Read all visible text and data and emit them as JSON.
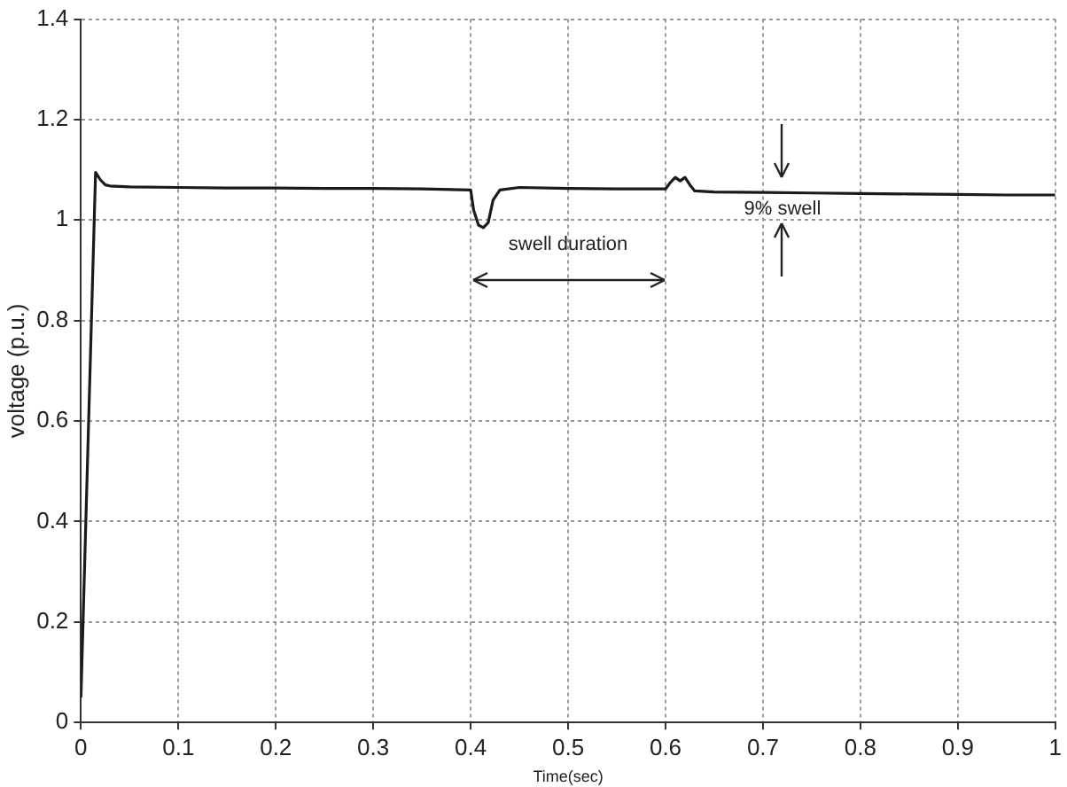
{
  "chart_data": {
    "type": "line",
    "xlabel": "Time(sec)",
    "ylabel": "voltage (p.u.)",
    "xlim": [
      0,
      1
    ],
    "xticks": [
      0,
      0.1,
      0.2,
      0.3,
      0.4,
      0.5,
      0.6,
      0.7,
      0.8,
      0.9,
      1
    ],
    "ylim": [
      0,
      1.4
    ],
    "yticks": [
      0,
      0.2,
      0.4,
      0.6,
      0.8,
      1,
      1.2,
      1.4
    ],
    "grid": true,
    "legend": false,
    "marker": "none",
    "line_style": "solid",
    "series": [
      {
        "color": "#1a1a1a",
        "x": [
          0,
          0.015,
          0.02,
          0.025,
          0.03,
          0.05,
          0.1,
          0.15,
          0.2,
          0.25,
          0.3,
          0.35,
          0.4,
          0.403,
          0.408,
          0.413,
          0.418,
          0.423,
          0.43,
          0.45,
          0.5,
          0.55,
          0.6,
          0.605,
          0.61,
          0.615,
          0.62,
          0.625,
          0.63,
          0.65,
          0.7,
          0.75,
          0.8,
          0.85,
          0.9,
          0.95,
          1
        ],
        "values": [
          0.05,
          1.095,
          1.08,
          1.07,
          1.068,
          1.066,
          1.065,
          1.064,
          1.064,
          1.063,
          1.063,
          1.062,
          1.06,
          1.02,
          0.99,
          0.985,
          0.995,
          1.04,
          1.06,
          1.065,
          1.063,
          1.062,
          1.062,
          1.075,
          1.085,
          1.078,
          1.085,
          1.07,
          1.058,
          1.056,
          1.055,
          1.054,
          1.053,
          1.052,
          1.051,
          1.05,
          1.05
        ]
      }
    ],
    "annotations": [
      "swell duration",
      "9% swell"
    ]
  }
}
